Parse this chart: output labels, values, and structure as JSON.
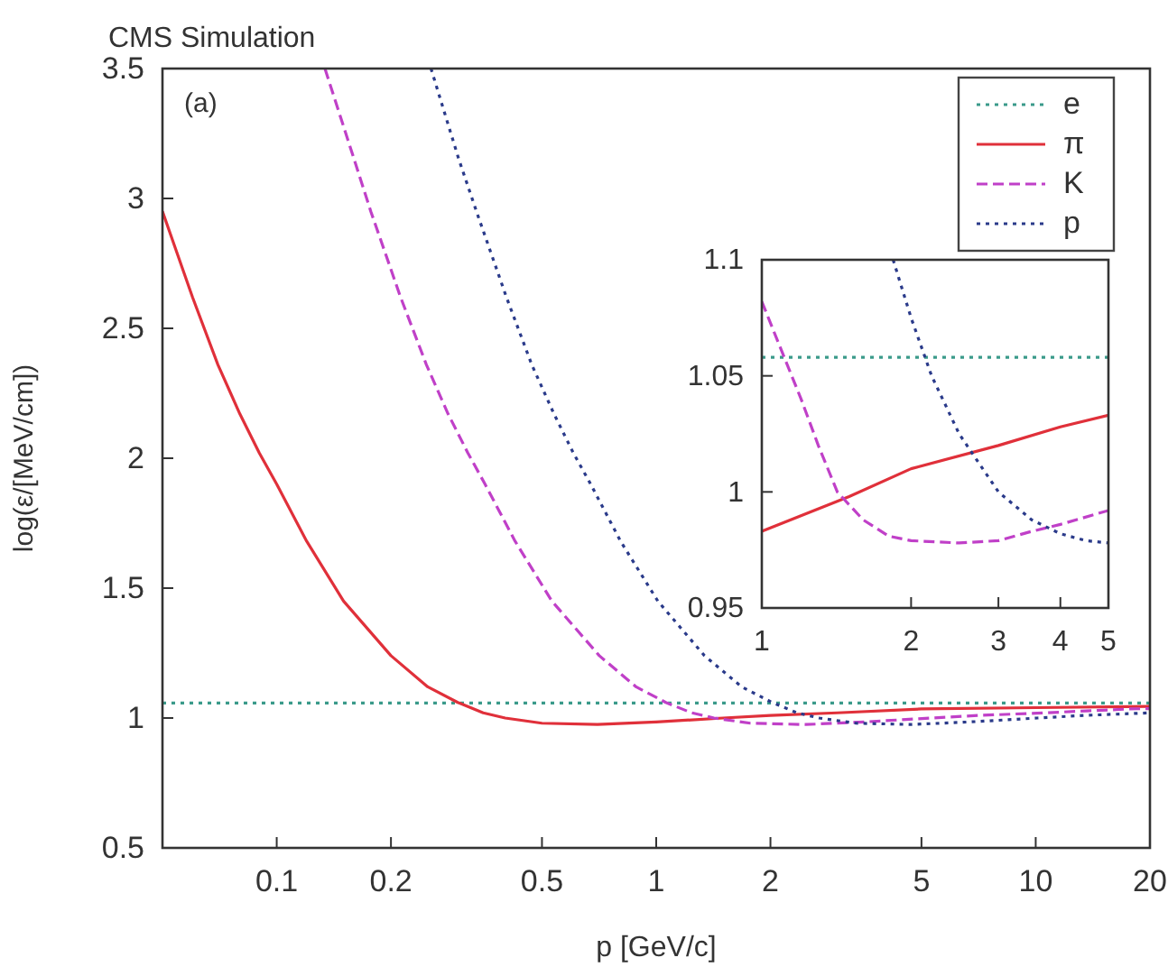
{
  "chart_data": [
    {
      "type": "line",
      "title": "CMS Simulation",
      "xlabel": "p [GeV/c]",
      "ylabel": "log(ε/[MeV/cm])",
      "log": "x",
      "xlim": [
        0.05,
        20
      ],
      "xticks": [
        0.1,
        0.2,
        0.5,
        1,
        2,
        5,
        10,
        20
      ],
      "ylim": [
        0.5,
        3.5
      ],
      "yticks": [
        0.5,
        1,
        1.5,
        2,
        2.5,
        3,
        3.5
      ],
      "legend": "top right",
      "annotations": [
        "(a)"
      ],
      "series": [
        {
          "name": "e",
          "color": "#3a9a8a",
          "line_style": "dotted",
          "x": [
            0.05,
            20
          ],
          "values": [
            1.058,
            1.058
          ]
        },
        {
          "name": "π",
          "color": "#e0303a",
          "line_style": "solid",
          "x": [
            0.05,
            0.06,
            0.07,
            0.08,
            0.09,
            0.1,
            0.12,
            0.15,
            0.2,
            0.25,
            0.3,
            0.35,
            0.4,
            0.5,
            0.7,
            1,
            1.5,
            2,
            3,
            5,
            10,
            20
          ],
          "values": [
            2.95,
            2.62,
            2.36,
            2.17,
            2.02,
            1.9,
            1.68,
            1.45,
            1.24,
            1.12,
            1.06,
            1.02,
            1.0,
            0.98,
            0.975,
            0.985,
            1.0,
            1.01,
            1.02,
            1.035,
            1.04,
            1.045
          ]
        },
        {
          "name": "K",
          "color": "#c040c8",
          "line_style": "dashed",
          "x": [
            0.134,
            0.16,
            0.177,
            0.212,
            0.248,
            0.283,
            0.319,
            0.354,
            0.425,
            0.531,
            0.708,
            0.885,
            1.06,
            1.24,
            1.42,
            1.77,
            2.48,
            3.54,
            5.31,
            7.08,
            10.6,
            17.7,
            20
          ],
          "values": [
            3.5,
            3.15,
            2.95,
            2.62,
            2.36,
            2.17,
            2.02,
            1.9,
            1.68,
            1.45,
            1.24,
            1.12,
            1.06,
            1.02,
            1.0,
            0.98,
            0.975,
            0.985,
            1.0,
            1.01,
            1.02,
            1.035,
            1.036
          ]
        },
        {
          "name": "p",
          "color": "#2a3a8a",
          "line_style": "dotted",
          "x": [
            0.255,
            0.302,
            0.336,
            0.403,
            0.47,
            0.538,
            0.605,
            0.672,
            0.806,
            1.01,
            1.34,
            1.68,
            2.02,
            2.35,
            2.69,
            3.36,
            4.7,
            6.72,
            10.1,
            13.4,
            20
          ],
          "values": [
            3.5,
            3.15,
            2.95,
            2.62,
            2.36,
            2.17,
            2.02,
            1.9,
            1.68,
            1.45,
            1.24,
            1.12,
            1.06,
            1.02,
            1.0,
            0.98,
            0.975,
            0.985,
            1.0,
            1.01,
            1.02
          ]
        }
      ]
    },
    {
      "type": "line",
      "log": "x",
      "xlim": [
        1,
        5
      ],
      "xticks": [
        1,
        2,
        3,
        4,
        5
      ],
      "ylim": [
        0.95,
        1.1
      ],
      "yticks": [
        0.95,
        1,
        1.05,
        1.1
      ],
      "series": [
        {
          "color": "#3a9a8a",
          "line_style": "dotted",
          "x": [
            1,
            5
          ],
          "values": [
            1.058,
            1.058
          ]
        },
        {
          "color": "#e0303a",
          "line_style": "solid",
          "x": [
            1,
            1.5,
            2,
            3,
            4,
            5
          ],
          "values": [
            0.983,
            0.998,
            1.01,
            1.02,
            1.028,
            1.033
          ]
        },
        {
          "color": "#c040c8",
          "line_style": "dashed",
          "x": [
            1,
            1.1,
            1.2,
            1.3,
            1.42,
            1.6,
            1.8,
            2,
            2.5,
            3,
            3.5,
            4,
            5
          ],
          "values": [
            1.082,
            1.06,
            1.04,
            1.02,
            1.0,
            0.988,
            0.981,
            0.979,
            0.978,
            0.979,
            0.983,
            0.986,
            0.992
          ]
        },
        {
          "color": "#2a3a8a",
          "line_style": "dotted",
          "x": [
            1.84,
            2,
            2.2,
            2.5,
            3,
            3.5,
            4,
            4.5,
            5
          ],
          "values": [
            1.1,
            1.075,
            1.05,
            1.025,
            1.0,
            0.988,
            0.982,
            0.979,
            0.978
          ]
        }
      ]
    }
  ]
}
